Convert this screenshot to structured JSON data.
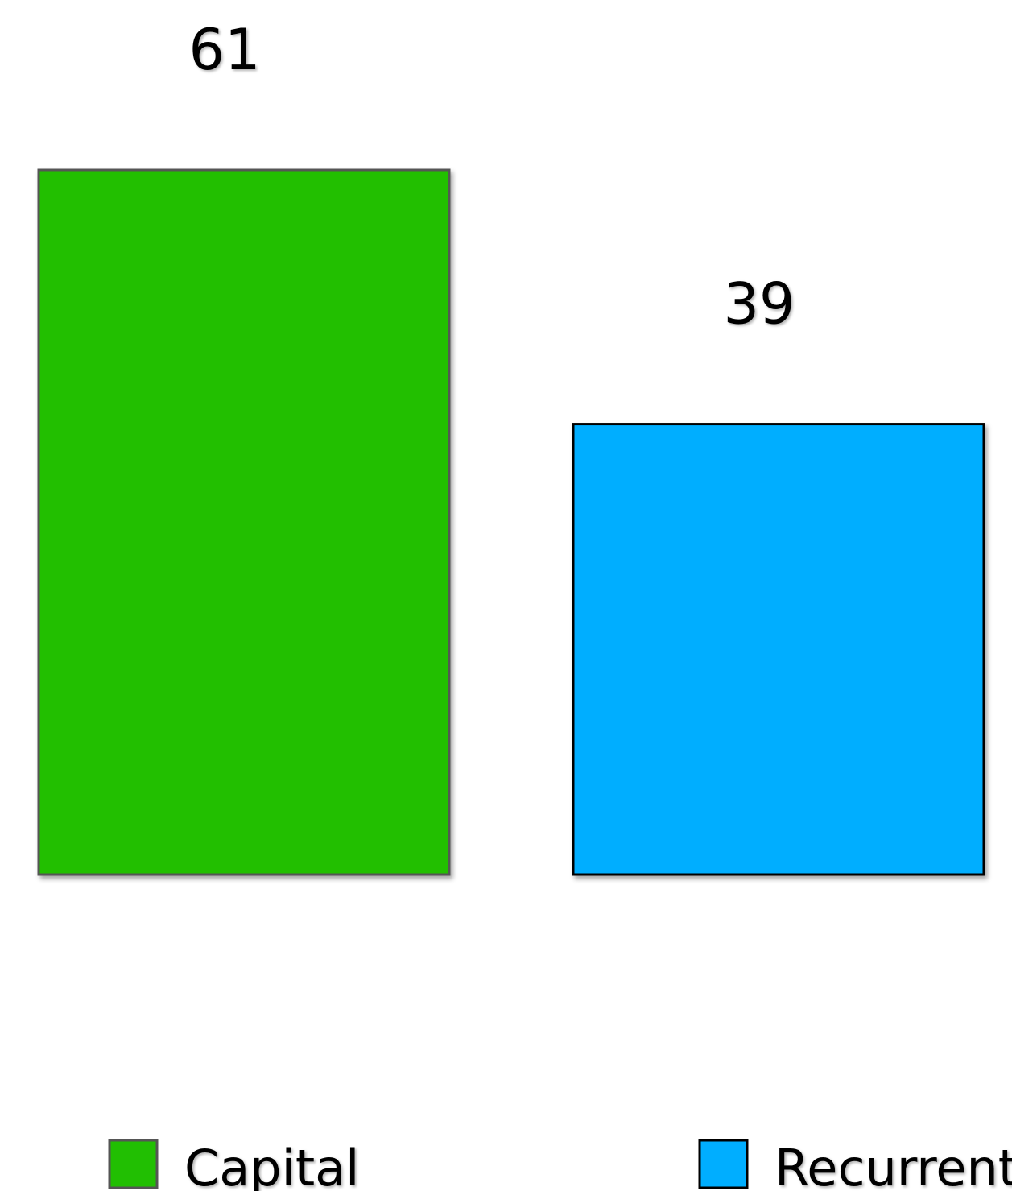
{
  "chart_data": {
    "type": "bar",
    "categories": [
      "Capital",
      "Recurrent"
    ],
    "values": [
      61,
      39
    ],
    "data_labels": [
      "61",
      "39"
    ],
    "colors": [
      "#21BF02",
      "#00AEFF"
    ],
    "title": "",
    "xlabel": "",
    "ylabel": "",
    "ylim": [
      0,
      61
    ],
    "grid": false,
    "legend": {
      "position": "bottom",
      "entries": [
        "Capital",
        "Recurrent"
      ]
    }
  }
}
